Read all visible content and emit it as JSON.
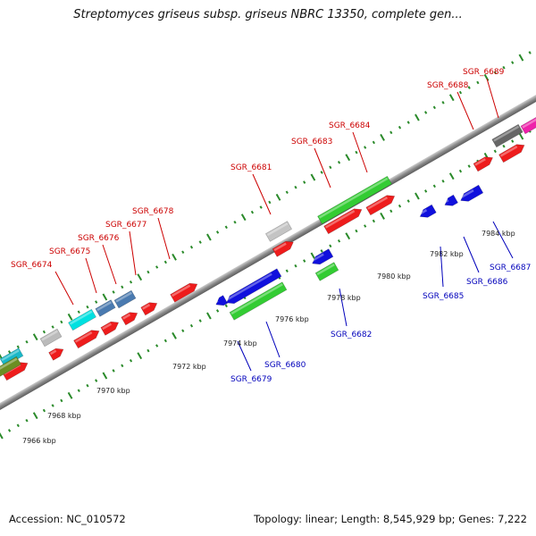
{
  "title": "Streptomyces griseus subsp. griseus NBRC 13350, complete gen...",
  "accession": "Accession: NC_010572",
  "stats": "Topology: linear; Length: 8,545,929 bp; Genes: 7,222",
  "colors": {
    "forward_label": "#cc0000",
    "reverse_label": "#0000bb",
    "ruler_dots": "#2a8a2a",
    "backbone": "#888888"
  },
  "scale_ticks": [
    "7966 kbp",
    "7968 kbp",
    "7970 kbp",
    "7972 kbp",
    "7974 kbp",
    "7976 kbp",
    "7978 kbp",
    "7980 kbp",
    "7982 kbp",
    "7984 kbp"
  ],
  "forward_gene_labels": [
    "SGR_6674",
    "SGR_6675",
    "SGR_6676",
    "SGR_6677",
    "SGR_6678",
    "SGR_6681",
    "SGR_6683",
    "SGR_6684",
    "SGR_6688",
    "SGR_6689"
  ],
  "reverse_gene_labels": [
    "SGR_6679",
    "SGR_6680",
    "SGR_6682",
    "SGR_6685",
    "SGR_6686",
    "SGR_6687"
  ]
}
